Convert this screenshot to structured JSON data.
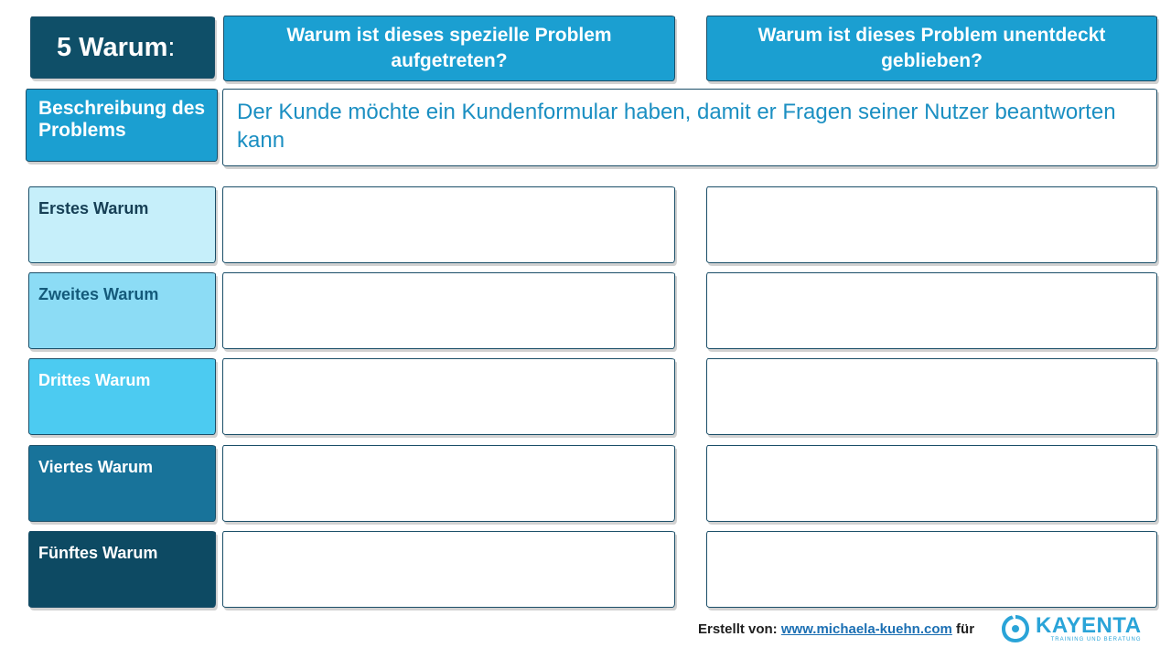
{
  "title": {
    "main": "5 Warum",
    "colon": ":"
  },
  "headers": [
    "Warum ist dieses spezielle Problem aufgetreten?",
    "Warum ist dieses Problem unentdeckt geblieben?"
  ],
  "problem": {
    "label": "Beschreibung des Problems",
    "text": "Der Kunde möchte ein Kundenformular haben, damit er Fragen seiner Nutzer beantworten kann"
  },
  "rows": [
    {
      "label": "Erstes Warum",
      "bg": "#c6effa",
      "fg": "#163f55"
    },
    {
      "label": "Zweites Warum",
      "bg": "#8cdcf5",
      "fg": "#145a7a"
    },
    {
      "label": "Drittes Warum",
      "bg": "#4ccbf1",
      "fg": "#ffffff"
    },
    {
      "label": "Viertes Warum",
      "bg": "#18739a",
      "fg": "#ffffff"
    },
    {
      "label": "Fünftes Warum",
      "bg": "#0d4a63",
      "fg": "#ffffff"
    }
  ],
  "footer": {
    "prefix": "Erstellt von:",
    "link": "www.michaela-kuehn.com",
    "suffix": "für"
  },
  "logo": {
    "main": "KAYENTA",
    "sub": "TRAINING UND BERATUNG",
    "icon": "kayenta-logo-icon"
  },
  "colors": {
    "dark_teal": "#0f4f68",
    "accent_blue": "#1b9fd1"
  }
}
